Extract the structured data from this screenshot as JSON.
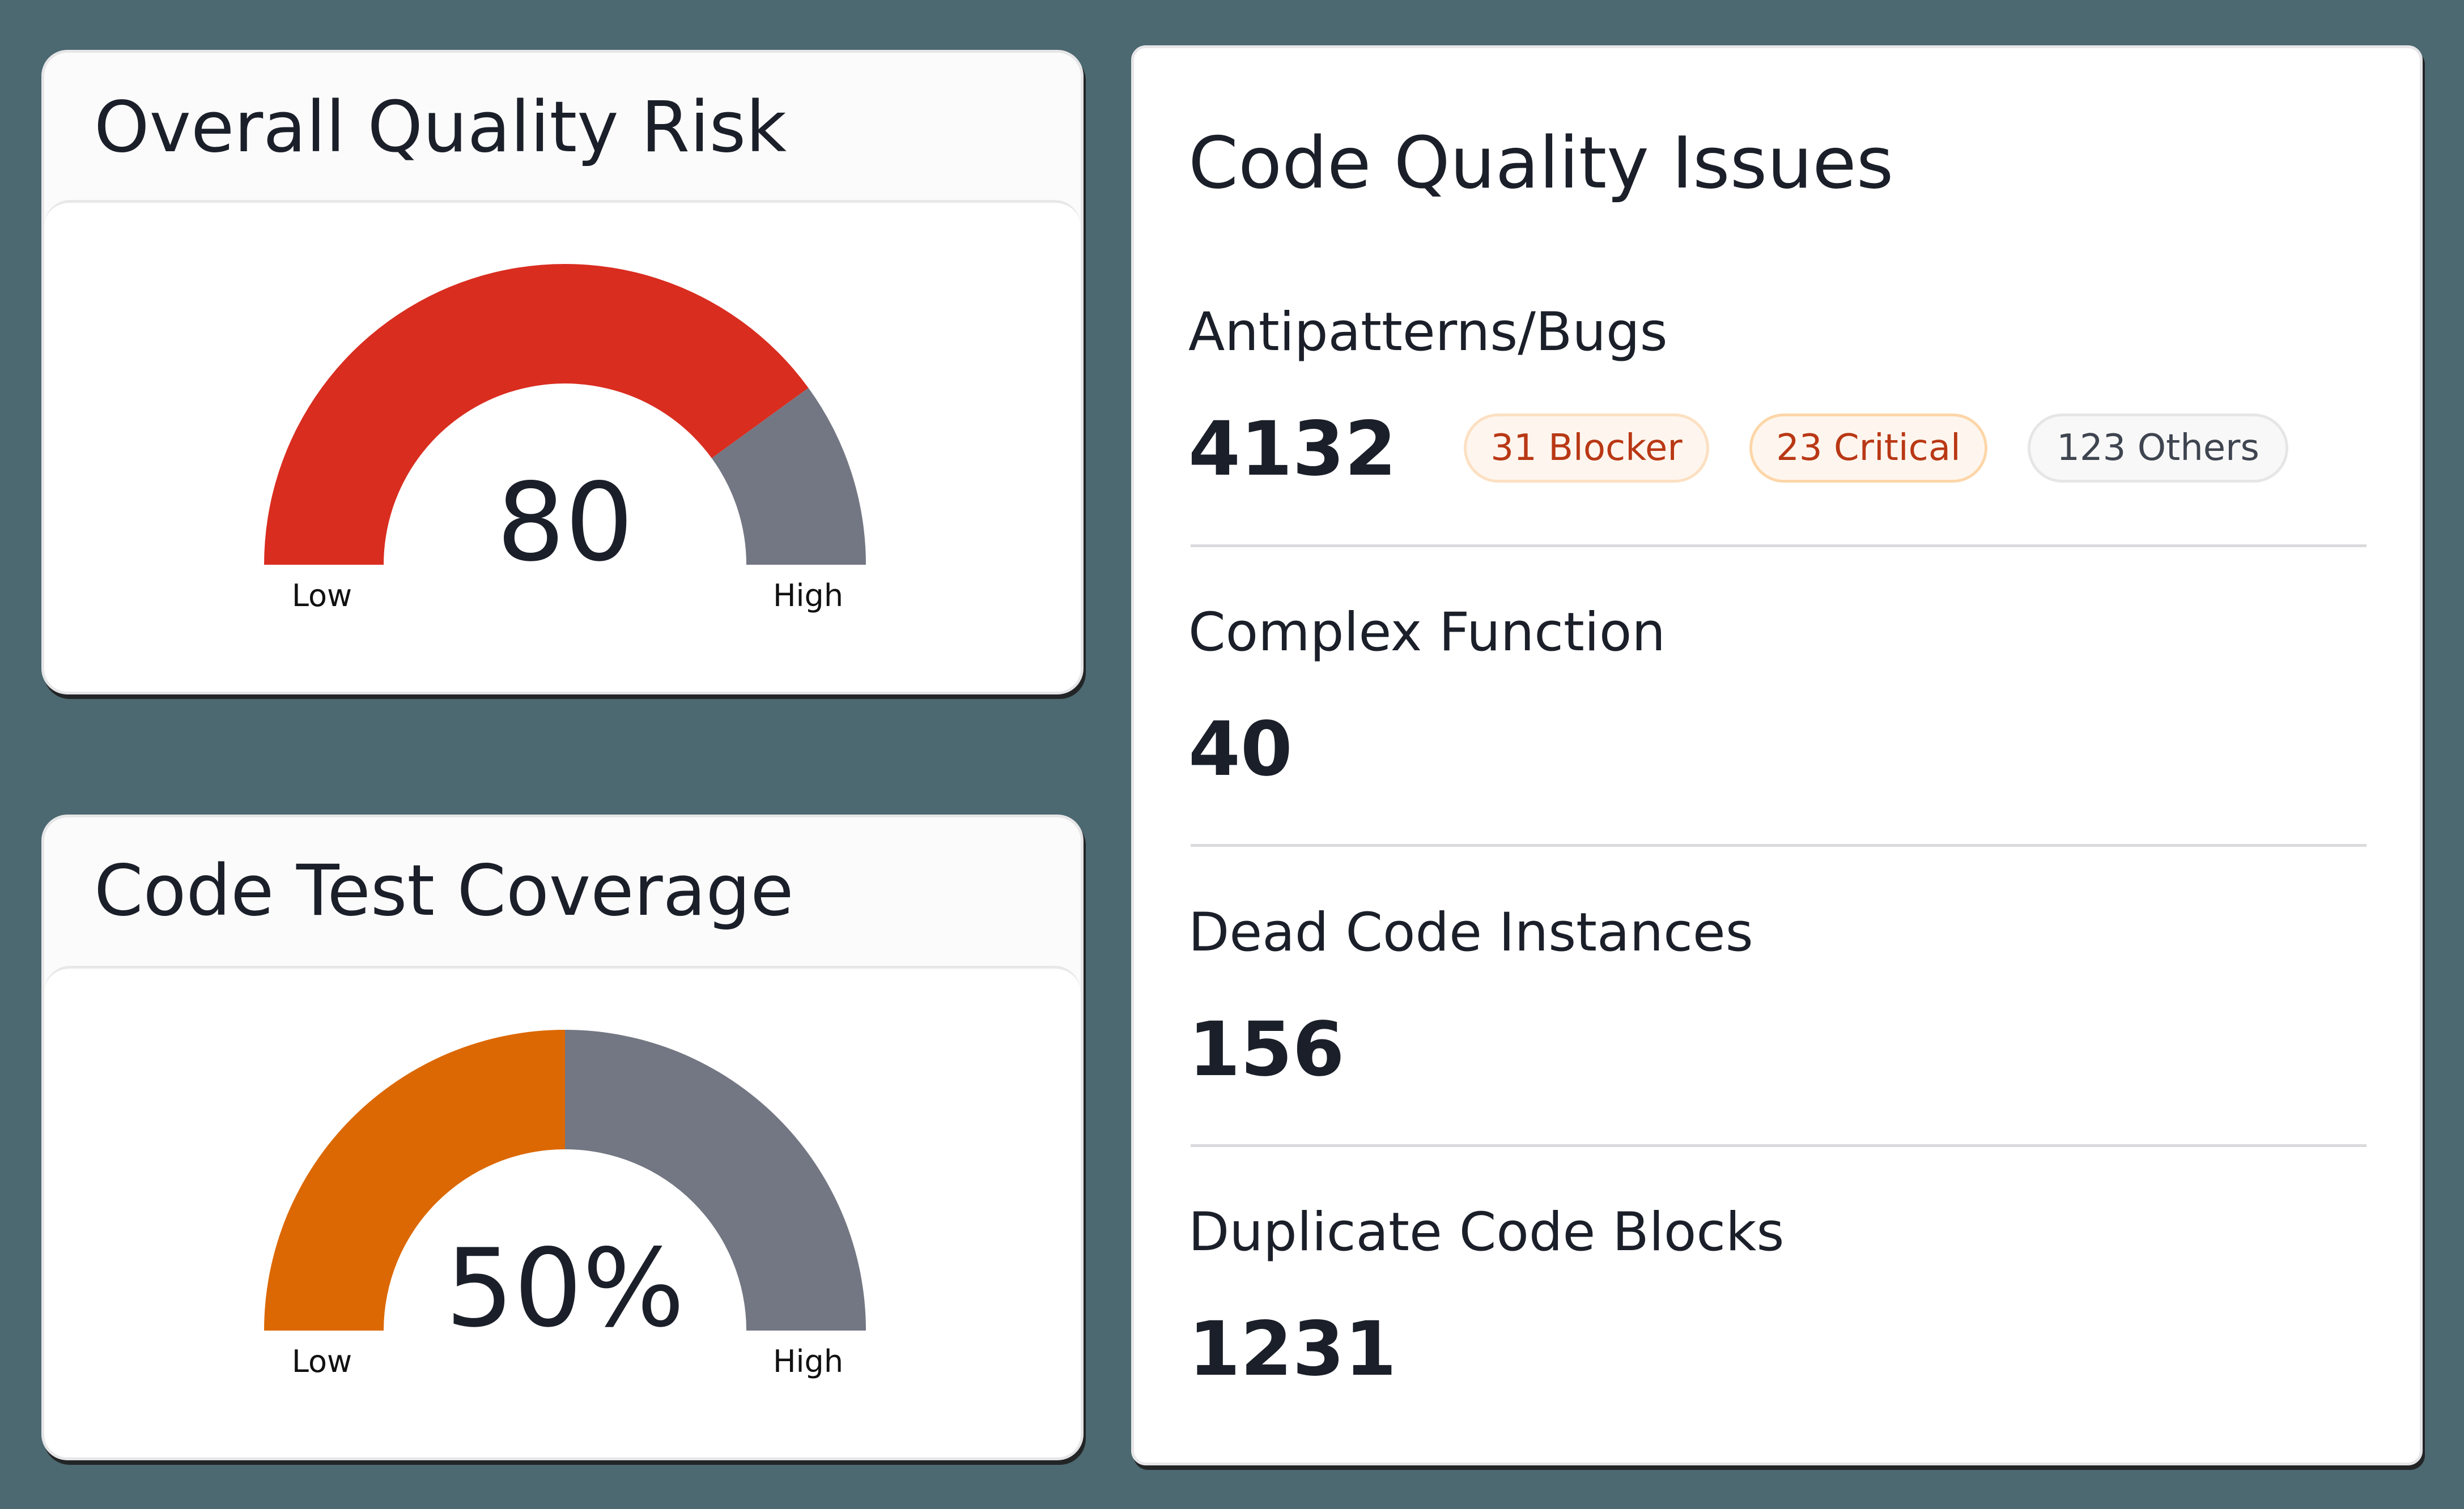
{
  "colors": {
    "background": "#4C6870",
    "text": "#1B1F29",
    "risk_fill": "#D92D20",
    "coverage_fill": "#DC6803",
    "gauge_track": "#737783",
    "badge_warm_text": "#B93815",
    "badge_warm_bg": "#FEF6EE",
    "badge_warm_border": "#FDDCAB",
    "badge_neutral_text": "#3F4550",
    "badge_neutral_bg": "#F8F8F8",
    "badge_neutral_border": "#E6E6E6"
  },
  "risk_card": {
    "title": "Overall Quality Risk",
    "value": "80",
    "low_label": "Low",
    "high_label": "High"
  },
  "coverage_card": {
    "title": "Code Test Coverage",
    "value": "50%",
    "low_label": "Low",
    "high_label": "High"
  },
  "issues_card": {
    "title": "Code Quality Issues",
    "sections": [
      {
        "label": "Antipatterns/Bugs",
        "value": "4132",
        "badges": [
          {
            "label": "31 Blocker",
            "variant": "warm"
          },
          {
            "label": "23 Critical",
            "variant": "warm"
          },
          {
            "label": "123 Others",
            "variant": "neutral"
          }
        ]
      },
      {
        "label": "Complex Function",
        "value": "40"
      },
      {
        "label": "Dead Code Instances",
        "value": "156"
      },
      {
        "label": "Duplicate Code Blocks",
        "value": "1231"
      }
    ]
  },
  "chart_data": [
    {
      "type": "gauge",
      "title": "Overall Quality Risk",
      "value": 80,
      "min": 0,
      "max": 100,
      "min_label": "Low",
      "max_label": "High",
      "fill_color": "#D92D20",
      "track_color": "#737783"
    },
    {
      "type": "gauge",
      "title": "Code Test Coverage",
      "value": 50,
      "unit": "%",
      "min": 0,
      "max": 100,
      "min_label": "Low",
      "max_label": "High",
      "fill_color": "#DC6803",
      "track_color": "#737783"
    },
    {
      "type": "table",
      "title": "Code Quality Issues",
      "rows": [
        {
          "metric": "Antipatterns/Bugs",
          "count": 4132,
          "breakdown": {
            "Blocker": 31,
            "Critical": 23,
            "Others": 123
          }
        },
        {
          "metric": "Complex Function",
          "count": 40
        },
        {
          "metric": "Dead Code Instances",
          "count": 156
        },
        {
          "metric": "Duplicate Code Blocks",
          "count": 1231
        }
      ]
    }
  ]
}
